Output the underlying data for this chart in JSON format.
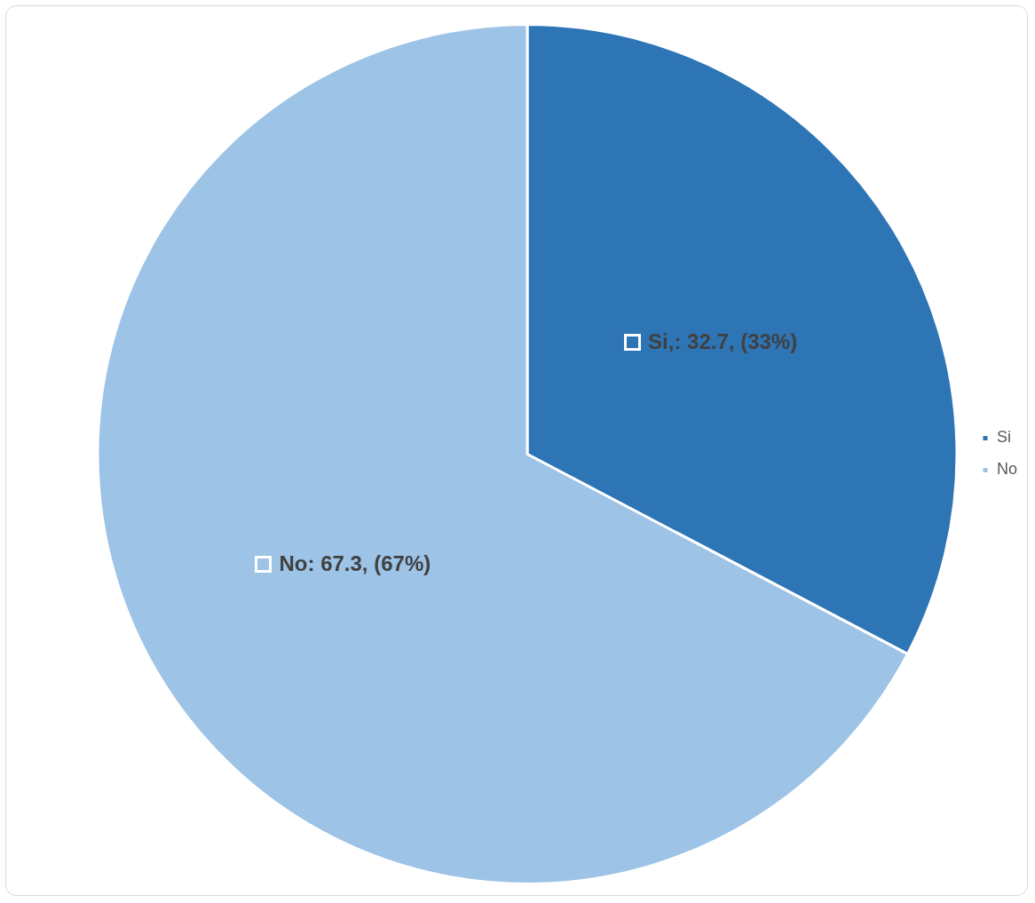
{
  "chart_data": {
    "type": "pie",
    "categories": [
      "Si",
      "No"
    ],
    "values": [
      32.7,
      67.3
    ],
    "colors": [
      "#2e75b6",
      "#9dc3e6"
    ],
    "value_labels": [
      "Si,: 32.7, (33%)",
      "No: 67.3, (67%)"
    ],
    "legend": "right"
  }
}
